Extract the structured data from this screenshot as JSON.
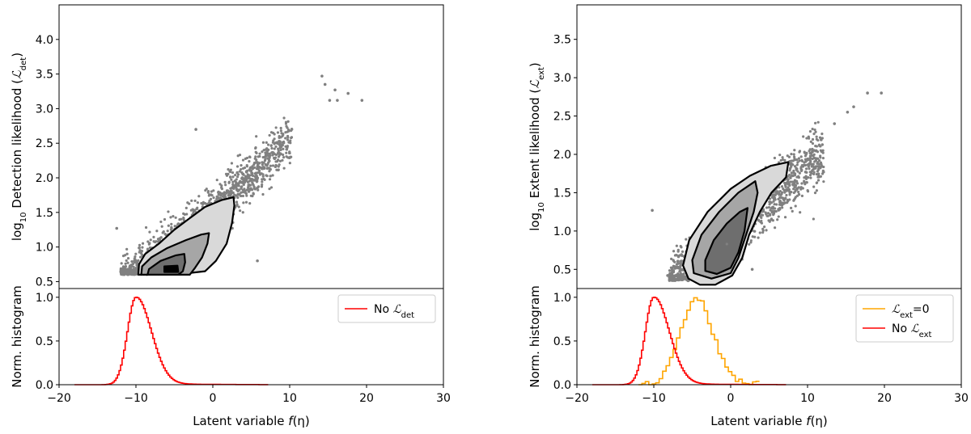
{
  "chart_data": [
    {
      "type": "scatter",
      "panel": "left-top",
      "xlim": [
        -20,
        30
      ],
      "ylim": [
        0.4,
        4.5
      ],
      "ylabel": "log10 Detection likelihood (ℒdet)",
      "ylabel_parts": {
        "pre": "log",
        "sub": "10",
        "mid": " Detection likelihood (",
        "script": "ℒ",
        "sub2": "det",
        "post": ")"
      },
      "yticks": [
        0.5,
        1.0,
        1.5,
        2.0,
        2.5,
        3.0,
        3.5,
        4.0
      ],
      "ytick_labels": [
        "0.5",
        "1.0",
        "1.5",
        "2.0",
        "2.5",
        "3.0",
        "3.5",
        "4.0"
      ],
      "scatter_color": "#808080",
      "trend": {
        "slope": 0.095,
        "intercept": 1.55,
        "x_range": [
          -12,
          19
        ],
        "y_floor": 0.6
      },
      "outliers": [
        [
          14.2,
          3.47
        ],
        [
          14.6,
          3.35
        ],
        [
          16.2,
          3.12
        ],
        [
          17.6,
          3.22
        ],
        [
          19.4,
          3.12
        ],
        [
          15.2,
          3.12
        ],
        [
          15.9,
          3.27
        ],
        [
          -2.2,
          2.7
        ],
        [
          5.8,
          0.8
        ],
        [
          -12.5,
          1.27
        ]
      ],
      "contour_levels": [
        {
          "fill": "#d9d9d9",
          "points": [
            [
              -9.7,
              0.6
            ],
            [
              -9.6,
              0.75
            ],
            [
              -8.8,
              0.9
            ],
            [
              -7.0,
              1.05
            ],
            [
              -5.0,
              1.25
            ],
            [
              -3.2,
              1.4
            ],
            [
              -1.0,
              1.58
            ],
            [
              1.2,
              1.68
            ],
            [
              2.7,
              1.72
            ],
            [
              2.8,
              1.6
            ],
            [
              2.5,
              1.35
            ],
            [
              1.8,
              1.05
            ],
            [
              0.4,
              0.8
            ],
            [
              -1.0,
              0.65
            ],
            [
              -5.0,
              0.6
            ],
            [
              -9.7,
              0.6
            ]
          ]
        },
        {
          "fill": "#a6a6a6",
          "points": [
            [
              -9.3,
              0.6
            ],
            [
              -9.2,
              0.72
            ],
            [
              -8.0,
              0.85
            ],
            [
              -6.0,
              0.98
            ],
            [
              -3.5,
              1.1
            ],
            [
              -1.5,
              1.18
            ],
            [
              -0.5,
              1.2
            ],
            [
              -0.7,
              1.05
            ],
            [
              -1.4,
              0.85
            ],
            [
              -2.3,
              0.7
            ],
            [
              -3.0,
              0.6
            ],
            [
              -9.3,
              0.6
            ]
          ]
        },
        {
          "fill": "#6e6e6e",
          "points": [
            [
              -8.5,
              0.6
            ],
            [
              -8.3,
              0.68
            ],
            [
              -6.8,
              0.8
            ],
            [
              -4.8,
              0.88
            ],
            [
              -3.7,
              0.9
            ],
            [
              -3.6,
              0.78
            ],
            [
              -3.9,
              0.65
            ],
            [
              -4.5,
              0.6
            ],
            [
              -8.5,
              0.6
            ]
          ]
        },
        {
          "fill": "#000000",
          "points": [
            [
              -6.3,
              0.64
            ],
            [
              -6.3,
              0.72
            ],
            [
              -4.6,
              0.73
            ],
            [
              -4.5,
              0.64
            ],
            [
              -6.3,
              0.64
            ]
          ]
        }
      ]
    },
    {
      "type": "line",
      "panel": "left-bottom",
      "xlim": [
        -20,
        30
      ],
      "ylim": [
        0,
        1.1
      ],
      "xlabel": "Latent variable f(η)",
      "xlabel_parts": {
        "pre": "Latent variable ",
        "italic": "f",
        "post": "(η)"
      },
      "ylabel": "Norm. histogram",
      "xticks": [
        -20,
        -10,
        0,
        10,
        20,
        30
      ],
      "xtick_labels": [
        "−20",
        "−10",
        "0",
        "10",
        "20",
        "30"
      ],
      "yticks": [
        0.0,
        0.5,
        1.0
      ],
      "ytick_labels": [
        "0.0",
        "0.5",
        "1.0"
      ],
      "legend_position": "top-right",
      "series": [
        {
          "name": "No ℒdet",
          "legend_parts": {
            "pre": "No ",
            "script": "ℒ",
            "sub": "det",
            "post": ""
          },
          "color": "#ff0000",
          "peak": -10,
          "sigma_left": 1.1,
          "sigma_right": 2.0,
          "tail": 0.02,
          "x_range": [
            -18,
            7
          ]
        }
      ]
    },
    {
      "type": "scatter",
      "panel": "right-top",
      "xlim": [
        -20,
        30
      ],
      "ylim": [
        0.25,
        3.95
      ],
      "ylabel": "log10 Extent likelihood (ℒext)",
      "ylabel_parts": {
        "pre": "log",
        "sub": "10",
        "mid": " Extent likelihood (",
        "script": "ℒ",
        "sub2": "ext",
        "post": ")"
      },
      "yticks": [
        0.5,
        1.0,
        1.5,
        2.0,
        2.5,
        3.0,
        3.5
      ],
      "ytick_labels": [
        "0.5",
        "1.0",
        "1.5",
        "2.0",
        "2.5",
        "3.0",
        "3.5"
      ],
      "scatter_color": "#808080",
      "trend": {
        "slope": 0.085,
        "intercept": 1.0,
        "x_range": [
          -8,
          20
        ],
        "y_floor": 0.35
      },
      "outliers": [
        [
          -10.2,
          1.27
        ],
        [
          17.8,
          2.8
        ],
        [
          19.6,
          2.8
        ],
        [
          16.0,
          2.62
        ],
        [
          15.2,
          2.55
        ],
        [
          13.5,
          2.4
        ],
        [
          -8.2,
          0.42
        ],
        [
          2.8,
          0.5
        ]
      ],
      "contour_levels": [
        {
          "fill": "#d9d9d9",
          "points": [
            [
              -5.5,
              0.38
            ],
            [
              -6.2,
              0.55
            ],
            [
              -5.4,
              0.88
            ],
            [
              -3.0,
              1.25
            ],
            [
              0.0,
              1.55
            ],
            [
              2.5,
              1.72
            ],
            [
              5.2,
              1.85
            ],
            [
              7.5,
              1.9
            ],
            [
              7.2,
              1.7
            ],
            [
              5.3,
              1.5
            ],
            [
              3.8,
              1.25
            ],
            [
              2.4,
              0.95
            ],
            [
              1.5,
              0.65
            ],
            [
              0.2,
              0.42
            ],
            [
              -2.0,
              0.3
            ],
            [
              -4.0,
              0.3
            ],
            [
              -5.5,
              0.38
            ]
          ]
        },
        {
          "fill": "#a6a6a6",
          "points": [
            [
              -4.8,
              0.45
            ],
            [
              -5.0,
              0.62
            ],
            [
              -3.8,
              0.95
            ],
            [
              -1.5,
              1.25
            ],
            [
              1.0,
              1.5
            ],
            [
              3.2,
              1.65
            ],
            [
              3.5,
              1.5
            ],
            [
              3.0,
              1.25
            ],
            [
              2.0,
              0.95
            ],
            [
              1.0,
              0.65
            ],
            [
              0.0,
              0.45
            ],
            [
              -2.5,
              0.38
            ],
            [
              -4.8,
              0.45
            ]
          ]
        },
        {
          "fill": "#6e6e6e",
          "points": [
            [
              -3.3,
              0.48
            ],
            [
              -3.3,
              0.62
            ],
            [
              -2.2,
              0.88
            ],
            [
              -0.5,
              1.1
            ],
            [
              1.2,
              1.25
            ],
            [
              2.2,
              1.3
            ],
            [
              1.8,
              1.0
            ],
            [
              1.0,
              0.72
            ],
            [
              0.0,
              0.52
            ],
            [
              -1.8,
              0.44
            ],
            [
              -3.3,
              0.48
            ]
          ]
        }
      ],
      "center_point": [
        -0.5,
        0.83
      ]
    },
    {
      "type": "line",
      "panel": "right-bottom",
      "xlim": [
        -20,
        30
      ],
      "ylim": [
        0,
        1.1
      ],
      "xlabel": "Latent variable f(η)",
      "xlabel_parts": {
        "pre": "Latent variable ",
        "italic": "f",
        "post": "(η)"
      },
      "ylabel": "Norm. histogram",
      "xticks": [
        -20,
        -10,
        0,
        10,
        20,
        30
      ],
      "xtick_labels": [
        "−20",
        "−10",
        "0",
        "10",
        "20",
        "30"
      ],
      "yticks": [
        0.0,
        0.5,
        1.0
      ],
      "ytick_labels": [
        "0.0",
        "0.5",
        "1.0"
      ],
      "legend_position": "top-right",
      "series": [
        {
          "name": "ℒext=0",
          "legend_parts": {
            "pre": "",
            "script": "ℒ",
            "sub": "ext",
            "post": "=0"
          },
          "color": "#ffa500",
          "peak": -4.5,
          "sigma_left": 2.0,
          "sigma_right": 2.2,
          "tail": 0.0,
          "x_range": [
            -12,
            3.5
          ],
          "stepped": true
        },
        {
          "name": "No ℒext",
          "legend_parts": {
            "pre": "No ",
            "script": "ℒ",
            "sub": "ext",
            "post": ""
          },
          "color": "#ff0000",
          "peak": -10,
          "sigma_left": 1.1,
          "sigma_right": 2.0,
          "tail": 0.02,
          "x_range": [
            -18,
            7
          ]
        }
      ]
    }
  ]
}
